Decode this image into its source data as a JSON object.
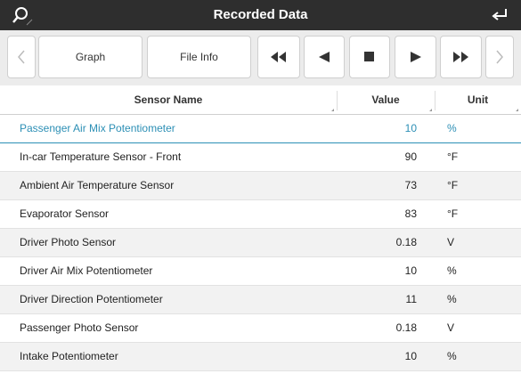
{
  "header": {
    "title": "Recorded Data"
  },
  "toolbar": {
    "buttons": [
      "Graph",
      "File Info"
    ]
  },
  "table": {
    "columns": [
      "Sensor Name",
      "Value",
      "Unit"
    ],
    "rows": [
      [
        "Passenger Air Mix Potentiometer",
        "10",
        "%"
      ],
      [
        "In-car Temperature Sensor - Front",
        "90",
        "°F"
      ],
      [
        "Ambient Air Temperature Sensor",
        "73",
        "°F"
      ],
      [
        "Evaporator Sensor",
        "83",
        "°F"
      ],
      [
        "Driver Photo Sensor",
        "0.18",
        "V"
      ],
      [
        "Driver Air Mix Potentiometer",
        "10",
        "%"
      ],
      [
        "Driver Direction Potentiometer",
        "11",
        "%"
      ],
      [
        "Passenger Photo Sensor",
        "0.18",
        "V"
      ],
      [
        "Intake Potentiometer",
        "10",
        "%"
      ]
    ]
  }
}
